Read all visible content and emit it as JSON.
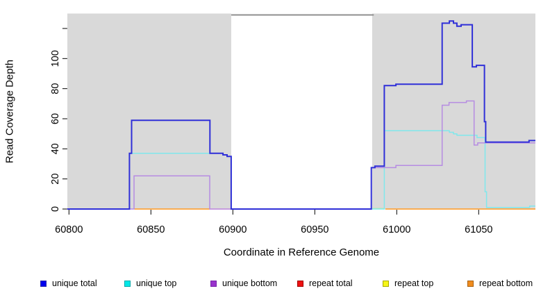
{
  "chart_data": {
    "type": "line",
    "title": "",
    "xlabel": "Coordinate in Reference Genome",
    "ylabel": "Read Coverage Depth",
    "xlim": [
      60799,
      61084.6
    ],
    "ylim": [
      0,
      130
    ],
    "grid": false,
    "x_ticks": [
      60800,
      60850,
      60900,
      60950,
      61000,
      61050
    ],
    "x_tick_labels": [
      "60800",
      "60850",
      "60900",
      "60950",
      "61000",
      "61050"
    ],
    "y_ticks": [
      0,
      20,
      40,
      60,
      80,
      100,
      120
    ],
    "y_tick_labels": [
      "0",
      "20",
      "40",
      "60",
      "80",
      "100",
      ""
    ],
    "shaded_regions": [
      {
        "x1": 60799,
        "x2": 60899,
        "color": "#d9d9d9"
      },
      {
        "x1": 60985,
        "x2": 61084.6,
        "color": "#d9d9d9"
      }
    ],
    "top_marker": {
      "x1": 60899,
      "x2": 60986,
      "y": 129,
      "color": "#8f8f8f"
    },
    "series": [
      {
        "name": "repeat total",
        "color": "#ffaebe",
        "width": 1.5,
        "segments": [
          [
            [
              60886.2,
              0
            ],
            [
              60899,
              0
            ]
          ]
        ]
      },
      {
        "name": "repeat top",
        "color": "#c0e6ae",
        "width": 1.5,
        "segments": [
          [
            [
              60985,
              0.4
            ],
            [
              60992.4,
              0.4
            ]
          ]
        ]
      },
      {
        "name": "repeat bottom",
        "color": "#ff9820",
        "width": 1.5,
        "segments": [
          [
            [
              60839.9,
              0
            ],
            [
              60886.2,
              0
            ]
          ],
          [
            [
              60993.1,
              0
            ],
            [
              61084.6,
              0
            ]
          ]
        ]
      },
      {
        "name": "unique top",
        "color": "#80e8ec",
        "width": 1.5,
        "segments": [
          [
            [
              60799,
              0
            ],
            [
              60836.9,
              0
            ],
            [
              60836.9,
              37
            ],
            [
              60894,
              37
            ],
            [
              60894,
              36
            ],
            [
              60896.5,
              36
            ],
            [
              60896.5,
              35
            ],
            [
              60899,
              35
            ],
            [
              60899,
              0
            ],
            [
              60992.4,
              0
            ],
            [
              60992.4,
              52
            ],
            [
              61032.1,
              52
            ],
            [
              61032.1,
              51
            ],
            [
              61034.6,
              51
            ],
            [
              61034.6,
              50
            ],
            [
              61036.7,
              50
            ],
            [
              61036.7,
              49
            ],
            [
              61049,
              49
            ],
            [
              61049,
              47.5
            ],
            [
              61053.9,
              47.5
            ],
            [
              61053.9,
              11.5
            ],
            [
              61054.8,
              11.5
            ],
            [
              61054.8,
              1
            ],
            [
              61081.1,
              1
            ],
            [
              61081.1,
              2
            ],
            [
              61084.6,
              2
            ]
          ]
        ]
      },
      {
        "name": "unique bottom",
        "color": "#b68ce2",
        "width": 1.5,
        "segments": [
          [
            [
              60799,
              0
            ],
            [
              60839.7,
              0
            ],
            [
              60839.7,
              22
            ],
            [
              60885.9,
              22
            ],
            [
              60885.9,
              0
            ],
            [
              60984.5,
              0
            ],
            [
              60984.5,
              27.5
            ],
            [
              60999.5,
              27.5
            ],
            [
              60999.5,
              29
            ],
            [
              61027.7,
              29
            ],
            [
              61027.7,
              69
            ],
            [
              61031.9,
              69
            ],
            [
              61031.9,
              70.8
            ],
            [
              61042.5,
              70.8
            ],
            [
              61042.5,
              71.8
            ],
            [
              61047.2,
              71.8
            ],
            [
              61047.2,
              42.5
            ],
            [
              61049.4,
              42.5
            ],
            [
              61049.4,
              44
            ],
            [
              61084.6,
              44
            ]
          ]
        ]
      },
      {
        "name": "unique total",
        "color": "#2f2fd8",
        "width": 2,
        "segments": [
          [
            [
              60799,
              0
            ],
            [
              60836.9,
              0
            ],
            [
              60836.9,
              37
            ],
            [
              60838.2,
              37
            ],
            [
              60838.2,
              59
            ],
            [
              60886,
              59
            ],
            [
              60886,
              37
            ],
            [
              60894,
              37
            ],
            [
              60894,
              36
            ],
            [
              60896.5,
              36
            ],
            [
              60896.5,
              35
            ],
            [
              60899,
              35
            ],
            [
              60899,
              0
            ],
            [
              60984.5,
              0
            ],
            [
              60984.5,
              27.5
            ],
            [
              60986.7,
              27.5
            ],
            [
              60986.7,
              28.5
            ],
            [
              60992.4,
              28.5
            ],
            [
              60992.4,
              82
            ],
            [
              60999.5,
              82
            ],
            [
              60999.5,
              83
            ],
            [
              61027.7,
              83
            ],
            [
              61027.7,
              123.5
            ],
            [
              61032.1,
              123.5
            ],
            [
              61032.1,
              125
            ],
            [
              61034.6,
              125
            ],
            [
              61034.6,
              123.5
            ],
            [
              61036.7,
              123.5
            ],
            [
              61036.7,
              121.5
            ],
            [
              61039.3,
              121.5
            ],
            [
              61039.3,
              122.5
            ],
            [
              61046.1,
              122.5
            ],
            [
              61046.1,
              94.5
            ],
            [
              61048.6,
              94.5
            ],
            [
              61048.6,
              95.5
            ],
            [
              61053.5,
              95.5
            ],
            [
              61053.5,
              58
            ],
            [
              61054.3,
              58
            ],
            [
              61054.3,
              44.5
            ],
            [
              61080.7,
              44.5
            ],
            [
              61080.7,
              45.5
            ],
            [
              61084.6,
              45.5
            ]
          ]
        ]
      }
    ],
    "legend_position": "bottom"
  },
  "legend": {
    "items": [
      {
        "label": "unique total",
        "color": "#0000ee",
        "border": "#2222aa"
      },
      {
        "label": "unique top",
        "color": "#00e8e8",
        "border": "#00a8a8"
      },
      {
        "label": "unique bottom",
        "color": "#9933cc",
        "border": "#7722aa"
      },
      {
        "label": "repeat total",
        "color": "#ee1111",
        "border": "#a00000"
      },
      {
        "label": "repeat top",
        "color": "#f5f518",
        "border": "#a8a800"
      },
      {
        "label": "repeat bottom",
        "color": "#f08c1e",
        "border": "#a86010"
      }
    ]
  },
  "axes": {
    "x_title": "Coordinate in Reference Genome",
    "y_title": "Read Coverage Depth"
  }
}
